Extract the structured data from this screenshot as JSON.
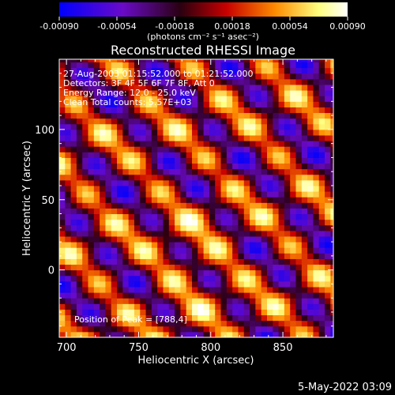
{
  "chart_data": {
    "type": "heatmap",
    "title": "Reconstructed RHESSI Image",
    "xlabel": "Heliocentric X (arcsec)",
    "ylabel": "Heliocentric Y (arcsec)",
    "xlim": [
      695,
      885
    ],
    "ylim": [
      -48,
      150
    ],
    "x_ticks": [
      700,
      750,
      800,
      850
    ],
    "y_ticks": [
      0,
      50,
      100
    ],
    "colorbar": {
      "range": [
        -0.0009,
        0.0009
      ],
      "ticks": [
        "-0.00090",
        "-0.00054",
        "-0.00018",
        "0.00018",
        "0.00054",
        "0.00090"
      ],
      "unit_label": "(photons cm⁻² s⁻¹ asec⁻²)",
      "colors": [
        "#0000ff",
        "#6a0ac8",
        "#2a0010",
        "#c80000",
        "#ff8c00",
        "#ffff80",
        "#ffffff"
      ]
    },
    "annotations": [
      "27-Aug-2003 01:15:52.000 to 01:21:52.000",
      "Detectors: 3F 4F 5F 6F 7F 8F, Att 0",
      "Energy Range: 12.0 - 25.0 keV",
      "Clean    Total counts: 5.57E+03"
    ],
    "peak_label": "Position of Peak = [788,4]",
    "peak_position": [
      788,
      4
    ],
    "stripes": {
      "direction": "diagonal, descending left to right",
      "pixel_size_arcsec": 4
    }
  },
  "footer": {
    "timestamp": "5-May-2022 03:09"
  }
}
